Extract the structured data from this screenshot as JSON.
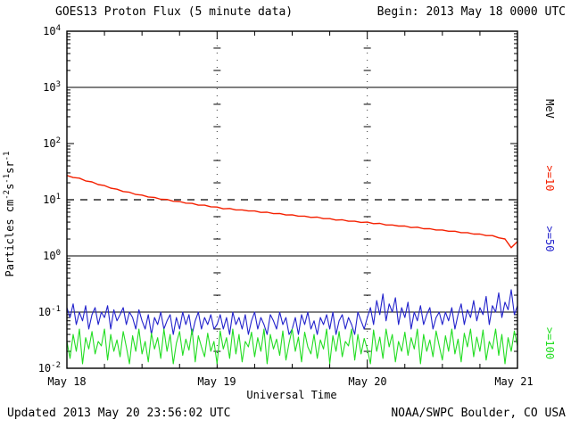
{
  "title": "GOES13 Proton Flux (5 minute data)",
  "begin_label": "Begin: 2013 May 18 0000 UTC",
  "updated_label": "Updated 2013 May 20 23:56:02 UTC",
  "credit_label": "NOAA/SWPC Boulder, CO USA",
  "colors": {
    "ge10": "#f42000",
    "ge50": "#2222cc",
    "ge100": "#22dd22",
    "axis": "#000000"
  },
  "ylabel_parts": [
    {
      "t": "Particles cm",
      "sup": false
    },
    {
      "t": "-2",
      "sup": true
    },
    {
      "t": "s",
      "sup": false
    },
    {
      "t": "-1",
      "sup": true
    },
    {
      "t": "sr",
      "sup": false
    },
    {
      "t": "-1",
      "sup": true
    }
  ],
  "right_axis": {
    "unit": "MeV",
    "labels": [
      {
        "text": ">=10",
        "color": "#f42000"
      },
      {
        "text": ">=50",
        "color": "#2222cc"
      },
      {
        "text": ">=100",
        "color": "#22dd22"
      }
    ]
  },
  "chart_data": {
    "type": "line",
    "title": "GOES13 Proton Flux (5 minute data)",
    "xlabel": "Universal Time",
    "ylabel": "Particles cm^-2 s^-1 sr^-1",
    "legend_position": "right",
    "x_ticks": [
      "May 18",
      "May 19",
      "May 20",
      "May 21"
    ],
    "x_hours_total": 72,
    "ylim_log10": [
      -2,
      4
    ],
    "yscale": "log",
    "hlines": [
      {
        "value": 1000,
        "style": "solid"
      },
      {
        "value": 10,
        "style": "dashed"
      },
      {
        "value": 1,
        "style": "solid"
      },
      {
        "value": 0.1,
        "style": "solid"
      }
    ],
    "vlines_hours": [
      24,
      48
    ],
    "series": [
      {
        "name": ">=10 MeV",
        "color": "#f42000",
        "dt_hours": 1,
        "values": [
          27.0,
          24.8,
          24.2,
          21.6,
          20.8,
          18.6,
          17.9,
          16.1,
          15.4,
          14.0,
          13.6,
          12.4,
          12.1,
          11.2,
          11.0,
          10.2,
          10.1,
          9.4,
          9.3,
          8.7,
          8.6,
          8.0,
          8.0,
          7.5,
          7.4,
          6.9,
          7.0,
          6.6,
          6.6,
          6.3,
          6.3,
          5.95,
          6.0,
          5.65,
          5.7,
          5.35,
          5.4,
          5.1,
          5.1,
          4.85,
          4.9,
          4.6,
          4.6,
          4.35,
          4.4,
          4.15,
          4.15,
          3.95,
          4.0,
          3.75,
          3.8,
          3.55,
          3.55,
          3.4,
          3.4,
          3.2,
          3.25,
          3.05,
          3.05,
          2.9,
          2.9,
          2.75,
          2.75,
          2.6,
          2.6,
          2.45,
          2.45,
          2.3,
          2.3,
          2.1,
          2.0,
          1.4,
          1.8
        ]
      },
      {
        "name": ">=50 MeV",
        "color": "#2222cc",
        "dt_hours": 0.5,
        "values": [
          0.12,
          0.08,
          0.14,
          0.06,
          0.1,
          0.07,
          0.13,
          0.05,
          0.09,
          0.12,
          0.06,
          0.1,
          0.08,
          0.13,
          0.05,
          0.11,
          0.07,
          0.09,
          0.12,
          0.06,
          0.1,
          0.08,
          0.05,
          0.11,
          0.07,
          0.05,
          0.09,
          0.04,
          0.08,
          0.06,
          0.1,
          0.05,
          0.07,
          0.09,
          0.04,
          0.08,
          0.05,
          0.1,
          0.06,
          0.09,
          0.04,
          0.07,
          0.1,
          0.05,
          0.08,
          0.06,
          0.09,
          0.05,
          0.06,
          0.09,
          0.05,
          0.08,
          0.04,
          0.1,
          0.06,
          0.08,
          0.05,
          0.09,
          0.04,
          0.07,
          0.1,
          0.05,
          0.08,
          0.06,
          0.04,
          0.09,
          0.07,
          0.05,
          0.1,
          0.06,
          0.08,
          0.04,
          0.05,
          0.08,
          0.04,
          0.09,
          0.06,
          0.1,
          0.05,
          0.07,
          0.04,
          0.08,
          0.06,
          0.09,
          0.05,
          0.1,
          0.04,
          0.07,
          0.09,
          0.05,
          0.08,
          0.06,
          0.04,
          0.1,
          0.07,
          0.05,
          0.08,
          0.12,
          0.06,
          0.16,
          0.09,
          0.21,
          0.07,
          0.14,
          0.1,
          0.18,
          0.06,
          0.12,
          0.08,
          0.15,
          0.05,
          0.1,
          0.07,
          0.13,
          0.06,
          0.09,
          0.12,
          0.05,
          0.08,
          0.1,
          0.06,
          0.1,
          0.07,
          0.12,
          0.05,
          0.09,
          0.14,
          0.06,
          0.11,
          0.08,
          0.16,
          0.07,
          0.12,
          0.09,
          0.19,
          0.06,
          0.13,
          0.1,
          0.22,
          0.08,
          0.15,
          0.11,
          0.25,
          0.09,
          0.13
        ]
      },
      {
        "name": ">=100 MeV",
        "color": "#22dd22",
        "dt_hours": 0.5,
        "values": [
          0.03,
          0.015,
          0.04,
          0.02,
          0.05,
          0.012,
          0.035,
          0.022,
          0.045,
          0.018,
          0.03,
          0.025,
          0.05,
          0.014,
          0.04,
          0.02,
          0.032,
          0.016,
          0.045,
          0.024,
          0.012,
          0.038,
          0.02,
          0.05,
          0.018,
          0.03,
          0.013,
          0.042,
          0.022,
          0.035,
          0.015,
          0.05,
          0.02,
          0.04,
          0.012,
          0.028,
          0.045,
          0.017,
          0.033,
          0.021,
          0.05,
          0.013,
          0.038,
          0.024,
          0.016,
          0.042,
          0.02,
          0.03,
          0.012,
          0.046,
          0.022,
          0.035,
          0.015,
          0.05,
          0.018,
          0.04,
          0.013,
          0.03,
          0.024,
          0.044,
          0.016,
          0.035,
          0.02,
          0.05,
          0.012,
          0.04,
          0.022,
          0.033,
          0.017,
          0.046,
          0.014,
          0.028,
          0.05,
          0.02,
          0.036,
          0.013,
          0.044,
          0.024,
          0.018,
          0.04,
          0.015,
          0.032,
          0.022,
          0.05,
          0.012,
          0.038,
          0.02,
          0.045,
          0.016,
          0.03,
          0.025,
          0.05,
          0.014,
          0.04,
          0.018,
          0.034,
          0.022,
          0.012,
          0.048,
          0.02,
          0.036,
          0.015,
          0.05,
          0.024,
          0.04,
          0.013,
          0.03,
          0.02,
          0.044,
          0.017,
          0.035,
          0.022,
          0.05,
          0.012,
          0.04,
          0.02,
          0.032,
          0.016,
          0.046,
          0.025,
          0.014,
          0.038,
          0.02,
          0.05,
          0.018,
          0.033,
          0.013,
          0.042,
          0.024,
          0.05,
          0.016,
          0.036,
          0.02,
          0.048,
          0.014,
          0.03,
          0.022,
          0.05,
          0.017,
          0.04,
          0.012,
          0.035,
          0.02,
          0.046,
          0.025
        ]
      }
    ]
  }
}
